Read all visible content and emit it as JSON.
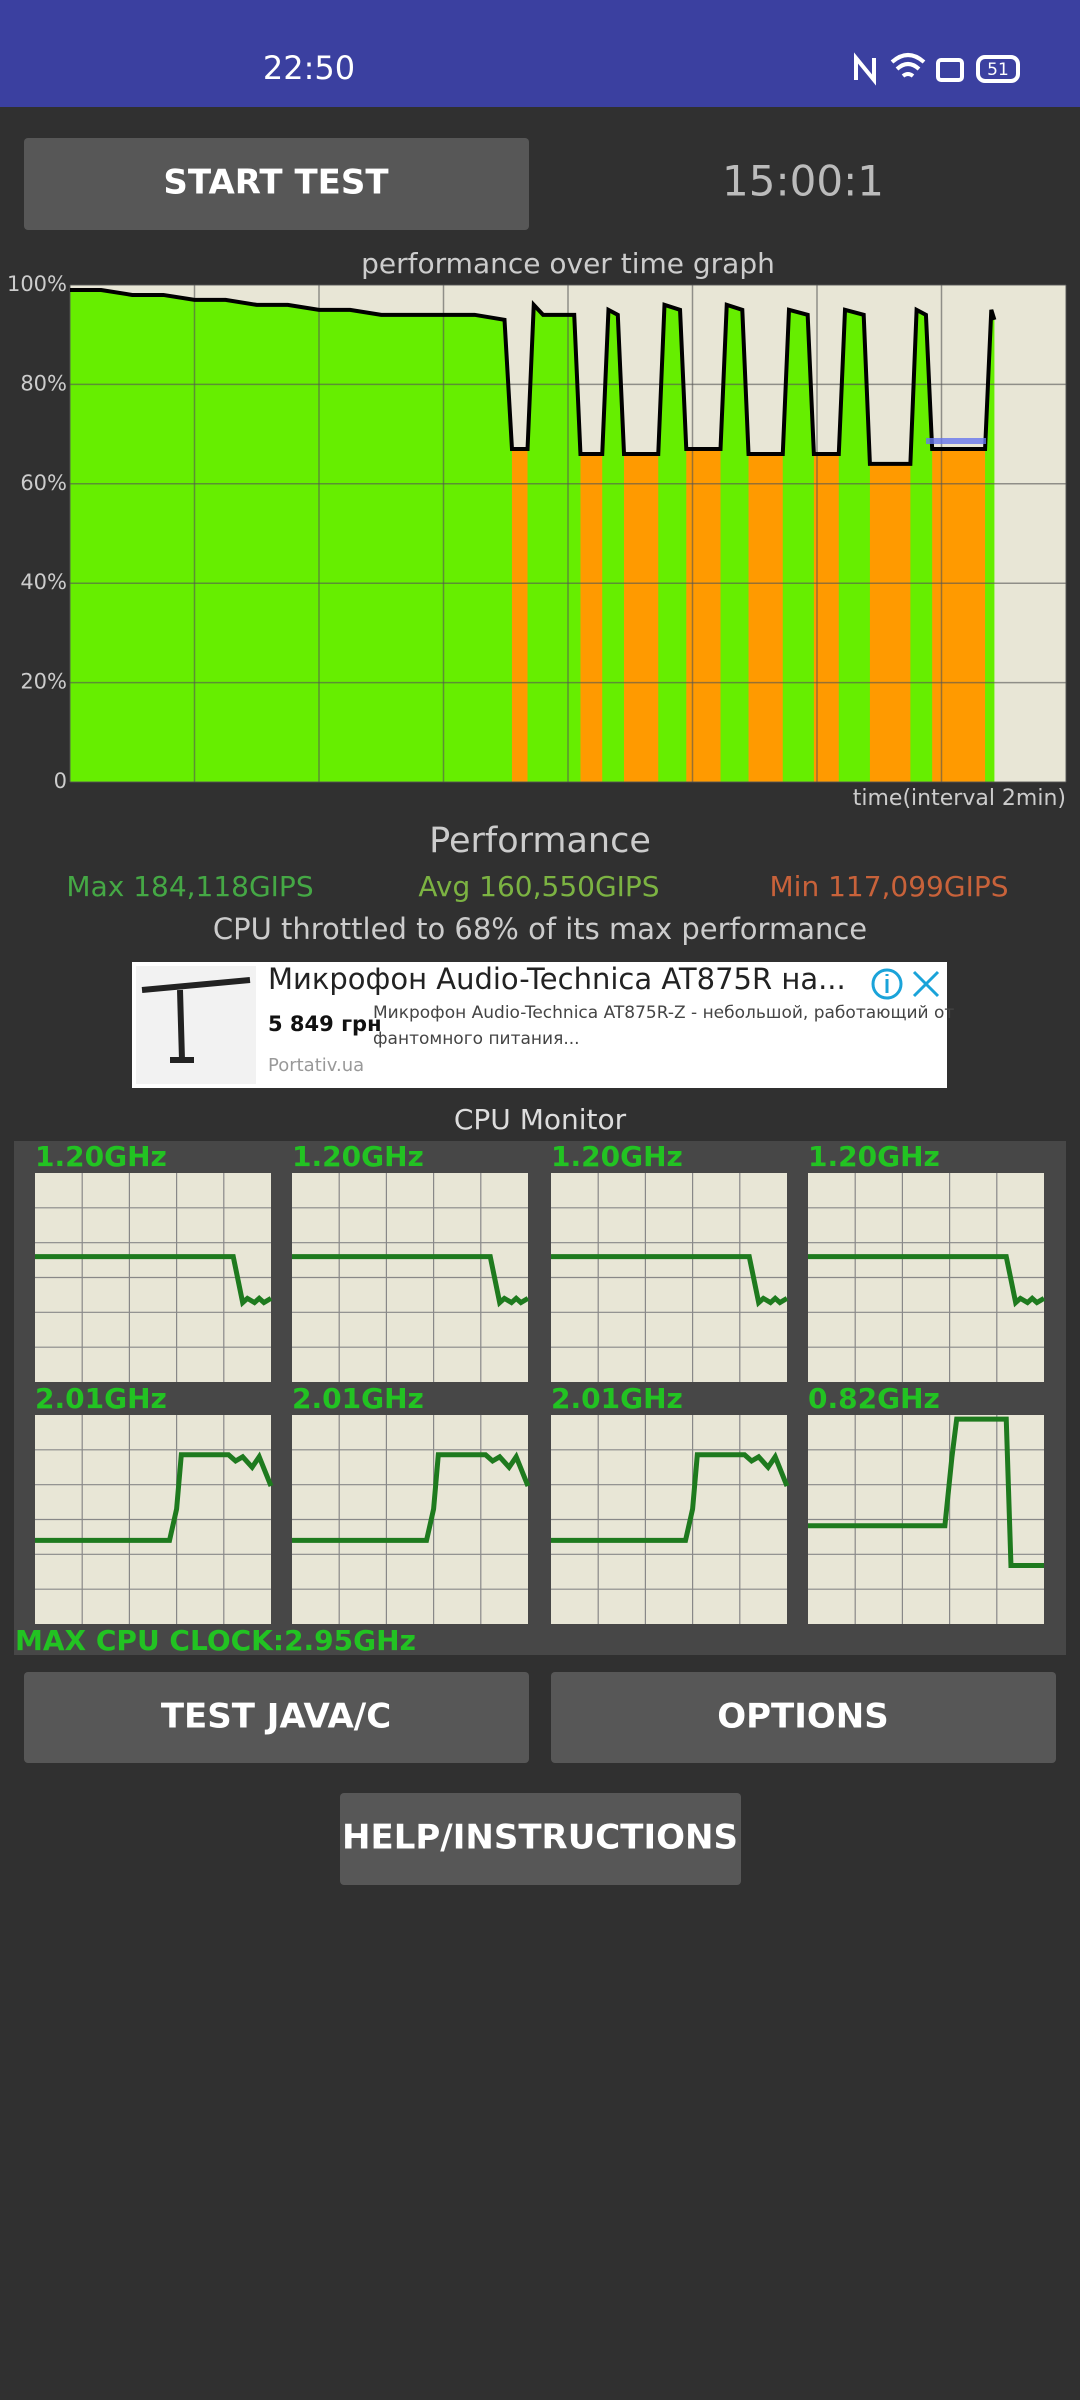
{
  "status_bar": {
    "time": "22:50",
    "battery": "51"
  },
  "controls": {
    "start_button": "START TEST",
    "timer": "15:00:1"
  },
  "chart_data": {
    "type": "area",
    "title": "performance over time graph",
    "x_label": "time(interval 2min)",
    "x": [
      0,
      0.5,
      1,
      1.5,
      2,
      2.5,
      3,
      3.5,
      4,
      4.5,
      5,
      5.5,
      6,
      6.5,
      6.98,
      7.1,
      7.35,
      7.45,
      7.6,
      8.1,
      8.2,
      8.55,
      8.65,
      8.8,
      8.9,
      9.45,
      9.55,
      9.8,
      9.9,
      10.45,
      10.55,
      10.8,
      10.9,
      11.45,
      11.55,
      11.85,
      11.95,
      12.35,
      12.45,
      12.75,
      12.85,
      13.5,
      13.6,
      13.75,
      13.85,
      14.7,
      14.8,
      14.85
    ],
    "values": [
      99,
      99,
      98,
      98,
      97,
      97,
      96,
      96,
      95,
      95,
      94,
      94,
      94,
      94,
      93,
      67,
      67,
      96,
      94,
      94,
      66,
      66,
      95,
      94,
      66,
      66,
      96,
      95,
      67,
      67,
      96,
      95,
      66,
      66,
      95,
      94,
      66,
      66,
      95,
      94,
      64,
      64,
      95,
      94,
      67,
      67,
      95,
      93
    ],
    "xlim": [
      0,
      16
    ],
    "xticks": [
      0,
      2,
      4,
      6,
      8,
      10,
      12,
      14,
      16
    ],
    "ylim": [
      0,
      100
    ],
    "yticks": [
      0,
      {
        "value": 20,
        "label": "20%"
      },
      {
        "value": 40,
        "label": "40%"
      },
      {
        "value": 60,
        "label": "60%"
      },
      {
        "value": 80,
        "label": "80%"
      },
      {
        "value": 100,
        "label": "100%"
      }
    ],
    "grid": true,
    "color": "#66ee00",
    "throttled_color": "#ff9a00",
    "line_color": "#000000"
  },
  "performance": {
    "title": "Performance",
    "max": "Max 184,118GIPS",
    "avg": "Avg 160,550GIPS",
    "min": "Min 117,099GIPS",
    "throttle": "CPU throttled to 68% of its max performance"
  },
  "ad": {
    "title": "Микрофон Audio-Technica AT875R на...",
    "price": "5 849 грн",
    "description_1": "Микрофон Audio-Technica AT875R-Z - небольшой, работающий от",
    "description_2": "фантомного питания...",
    "source": "Portativ.ua"
  },
  "cpu_monitor": {
    "title": "CPU Monitor",
    "cores": [
      {
        "frequency": "1.20GHz",
        "x": [
          0,
          0.84,
          0.88,
          0.9,
          0.93,
          0.95,
          0.97,
          1
        ],
        "values": [
          0.6,
          0.6,
          0.38,
          0.4,
          0.38,
          0.4,
          0.38,
          0.4
        ]
      },
      {
        "frequency": "1.20GHz",
        "x": [
          0,
          0.84,
          0.88,
          0.9,
          0.93,
          0.95,
          0.97,
          1
        ],
        "values": [
          0.6,
          0.6,
          0.38,
          0.4,
          0.38,
          0.4,
          0.38,
          0.4
        ]
      },
      {
        "frequency": "1.20GHz",
        "x": [
          0,
          0.84,
          0.88,
          0.9,
          0.93,
          0.95,
          0.97,
          1
        ],
        "values": [
          0.6,
          0.6,
          0.38,
          0.4,
          0.38,
          0.4,
          0.38,
          0.4
        ]
      },
      {
        "frequency": "1.20GHz",
        "x": [
          0,
          0.84,
          0.88,
          0.9,
          0.93,
          0.95,
          0.97,
          1
        ],
        "values": [
          0.6,
          0.6,
          0.38,
          0.4,
          0.38,
          0.4,
          0.38,
          0.4
        ]
      },
      {
        "frequency": "2.01GHz",
        "x": [
          0,
          0.57,
          0.6,
          0.62,
          0.78,
          0.82,
          0.85,
          0.88,
          0.92,
          0.95,
          1
        ],
        "values": [
          0.4,
          0.4,
          0.55,
          0.81,
          0.81,
          0.81,
          0.78,
          0.8,
          0.75,
          0.8,
          0.66
        ]
      },
      {
        "frequency": "2.01GHz",
        "x": [
          0,
          0.57,
          0.6,
          0.62,
          0.78,
          0.82,
          0.85,
          0.88,
          0.92,
          0.95,
          1
        ],
        "values": [
          0.4,
          0.4,
          0.55,
          0.81,
          0.81,
          0.81,
          0.78,
          0.8,
          0.75,
          0.8,
          0.66
        ]
      },
      {
        "frequency": "2.01GHz",
        "x": [
          0,
          0.57,
          0.6,
          0.62,
          0.78,
          0.82,
          0.85,
          0.88,
          0.92,
          0.95,
          1
        ],
        "values": [
          0.4,
          0.4,
          0.55,
          0.81,
          0.81,
          0.81,
          0.78,
          0.8,
          0.75,
          0.8,
          0.66
        ]
      },
      {
        "frequency": "0.82GHz",
        "x": [
          0,
          0.58,
          0.61,
          0.63,
          0.84,
          0.86,
          1
        ],
        "values": [
          0.47,
          0.47,
          0.8,
          0.98,
          0.98,
          0.28,
          0.28
        ]
      }
    ],
    "max_clock": "MAX CPU CLOCK:2.95GHz"
  },
  "buttons": {
    "test": "TEST JAVA/C",
    "options": "OPTIONS",
    "help": "HELP/INSTRUCTIONS"
  }
}
